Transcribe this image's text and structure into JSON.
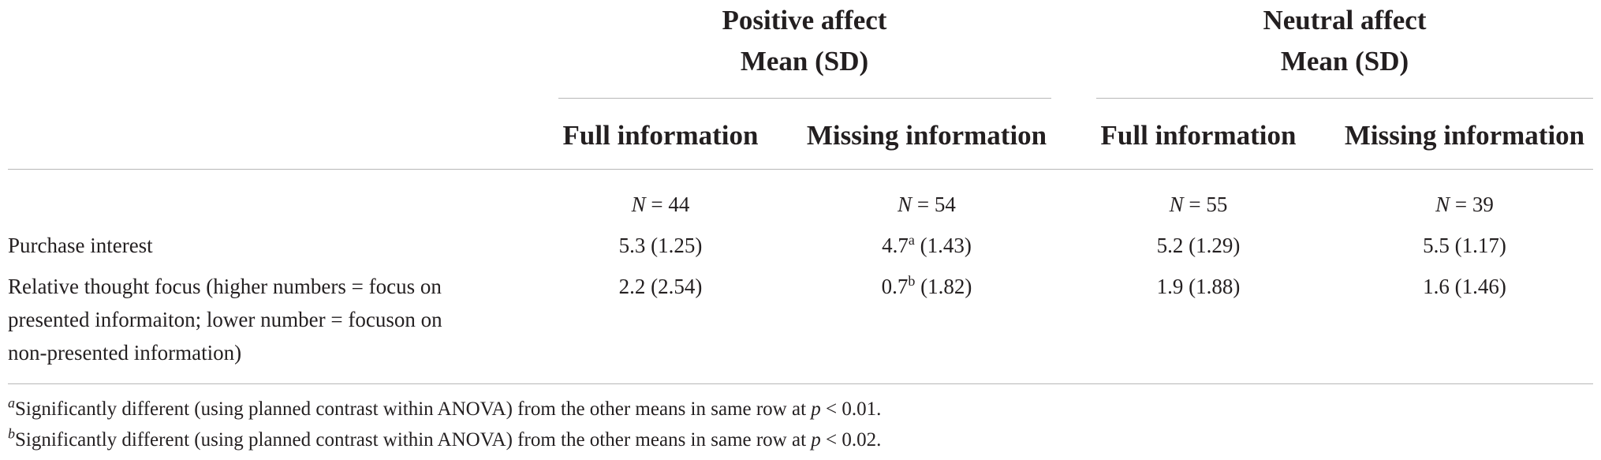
{
  "groups": [
    {
      "title": "Positive affect",
      "subtitle": "Mean (SD)"
    },
    {
      "title": "Neutral affect",
      "subtitle": "Mean (SD)"
    }
  ],
  "columns": [
    {
      "header": "Full information",
      "n_label": "N",
      "n_value": "44"
    },
    {
      "header": "Missing information",
      "n_label": "N",
      "n_value": "54"
    },
    {
      "header": "Full information",
      "n_label": "N",
      "n_value": "55"
    },
    {
      "header": "Missing information",
      "n_label": "N",
      "n_value": "39"
    }
  ],
  "rows": [
    {
      "label": "Purchase interest",
      "cells": [
        {
          "value": "5.3",
          "sup": "",
          "sd": "(1.25)"
        },
        {
          "value": "4.7",
          "sup": "a",
          "sd": "(1.43)"
        },
        {
          "value": "5.2",
          "sup": "",
          "sd": "(1.29)"
        },
        {
          "value": "5.5",
          "sup": "",
          "sd": "(1.17)"
        }
      ]
    },
    {
      "label_lines": [
        "Relative thought focus (higher numbers = focus on",
        "presented informaiton; lower number = focuson on",
        "non-presented information)"
      ],
      "cells": [
        {
          "value": "2.2",
          "sup": "",
          "sd": "(2.54)"
        },
        {
          "value": "0.7",
          "sup": "b",
          "sd": "(1.82)"
        },
        {
          "value": "1.9",
          "sup": "",
          "sd": "(1.88)"
        },
        {
          "value": "1.6",
          "sup": "",
          "sd": "(1.46)"
        }
      ]
    }
  ],
  "footnotes": [
    {
      "mark": "a",
      "text": "Significantly different (using planned contrast within ANOVA) from the other means in same row at ",
      "stat": "p",
      "rest": " < 0.01."
    },
    {
      "mark": "b",
      "text": "Significantly different (using planned contrast within ANOVA) from the other means in same row at ",
      "stat": "p",
      "rest": " < 0.02."
    }
  ]
}
